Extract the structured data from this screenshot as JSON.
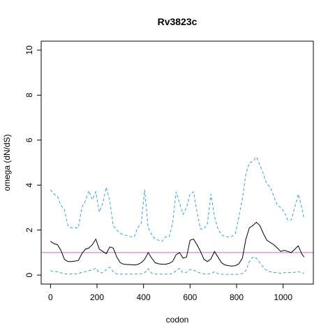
{
  "chart_data": {
    "type": "line",
    "title": "Rv3823c",
    "xlabel": "codon",
    "ylabel": "omega (dN/dS)",
    "xlim": [
      -40,
      1130
    ],
    "ylim": [
      -0.4,
      10.4
    ],
    "xticks": [
      0,
      200,
      400,
      600,
      800,
      1000
    ],
    "yticks": [
      0,
      2,
      4,
      6,
      8,
      10
    ],
    "grid": false,
    "reference_line": {
      "y": 1,
      "color": "#cc66cc"
    },
    "colors": {
      "mean": "#000000",
      "ci": "#29a3e0"
    },
    "series": [
      {
        "style": "solid",
        "x": [
          0,
          15,
          30,
          45,
          60,
          75,
          90,
          105,
          120,
          135,
          150,
          165,
          180,
          195,
          210,
          225,
          240,
          255,
          270,
          285,
          300,
          315,
          330,
          345,
          360,
          375,
          390,
          405,
          420,
          435,
          450,
          465,
          480,
          495,
          510,
          525,
          540,
          555,
          570,
          585,
          600,
          615,
          630,
          645,
          660,
          675,
          690,
          705,
          720,
          735,
          750,
          765,
          780,
          795,
          810,
          825,
          840,
          855,
          870,
          885,
          900,
          915,
          930,
          945,
          960,
          975,
          990,
          1005,
          1020,
          1035,
          1050,
          1065,
          1080,
          1090
        ],
        "y": [
          1.5,
          1.4,
          1.35,
          1.1,
          0.7,
          0.6,
          0.6,
          0.62,
          0.65,
          0.95,
          1.15,
          1.2,
          1.35,
          1.6,
          1.15,
          1.05,
          0.95,
          1.25,
          1.2,
          0.8,
          0.55,
          0.48,
          0.47,
          0.46,
          0.45,
          0.47,
          0.55,
          0.7,
          1.0,
          0.75,
          0.55,
          0.5,
          0.48,
          0.48,
          0.52,
          0.6,
          0.9,
          1.0,
          0.75,
          0.8,
          1.55,
          1.6,
          1.35,
          1.05,
          0.7,
          0.6,
          0.72,
          1.05,
          0.8,
          0.55,
          0.45,
          0.42,
          0.4,
          0.42,
          0.5,
          0.75,
          1.6,
          2.1,
          2.2,
          2.35,
          2.2,
          1.85,
          1.55,
          1.45,
          1.35,
          1.2,
          1.05,
          1.1,
          1.05,
          1.0,
          1.15,
          1.3,
          0.95,
          0.8
        ]
      },
      {
        "style": "dashed",
        "x": [
          0,
          15,
          30,
          45,
          60,
          75,
          90,
          105,
          120,
          135,
          150,
          165,
          180,
          195,
          210,
          225,
          240,
          255,
          270,
          285,
          300,
          315,
          330,
          345,
          360,
          375,
          390,
          405,
          420,
          435,
          450,
          465,
          480,
          495,
          510,
          525,
          540,
          555,
          570,
          585,
          600,
          615,
          630,
          645,
          660,
          675,
          690,
          705,
          720,
          735,
          750,
          765,
          780,
          795,
          810,
          825,
          840,
          855,
          870,
          885,
          900,
          915,
          930,
          945,
          960,
          975,
          990,
          1005,
          1020,
          1035,
          1050,
          1065,
          1080,
          1090
        ],
        "y": [
          3.8,
          3.6,
          3.5,
          3.1,
          2.9,
          2.2,
          2.1,
          2.1,
          2.1,
          3.0,
          3.3,
          3.75,
          3.35,
          3.7,
          2.8,
          3.2,
          3.9,
          3.3,
          2.2,
          2.0,
          1.85,
          1.8,
          1.75,
          1.7,
          1.7,
          2.1,
          2.3,
          3.8,
          2.1,
          1.8,
          1.6,
          1.55,
          1.5,
          1.7,
          1.7,
          2.3,
          3.7,
          3.2,
          2.7,
          3.0,
          3.6,
          3.7,
          2.8,
          2.05,
          2.05,
          2.3,
          3.6,
          2.6,
          2.05,
          1.8,
          1.7,
          1.7,
          1.72,
          1.85,
          2.6,
          3.4,
          4.5,
          5.0,
          5.05,
          5.25,
          4.9,
          4.5,
          4.05,
          3.9,
          3.5,
          3.1,
          3.0,
          2.8,
          2.45,
          2.45,
          3.0,
          3.6,
          3.0,
          2.5
        ]
      },
      {
        "style": "dashed",
        "x": [
          0,
          15,
          30,
          45,
          60,
          75,
          90,
          105,
          120,
          135,
          150,
          165,
          180,
          195,
          210,
          225,
          240,
          255,
          270,
          285,
          300,
          315,
          330,
          345,
          360,
          375,
          390,
          405,
          420,
          435,
          450,
          465,
          480,
          495,
          510,
          525,
          540,
          555,
          570,
          585,
          600,
          615,
          630,
          645,
          660,
          675,
          690,
          705,
          720,
          735,
          750,
          765,
          780,
          795,
          810,
          825,
          840,
          855,
          870,
          885,
          900,
          915,
          930,
          945,
          960,
          975,
          990,
          1005,
          1020,
          1035,
          1050,
          1065,
          1080,
          1090
        ],
        "y": [
          0.2,
          0.15,
          0.15,
          0.1,
          0.05,
          0.05,
          0.05,
          0.05,
          0.06,
          0.12,
          0.15,
          0.2,
          0.22,
          0.3,
          0.1,
          0.1,
          0.25,
          0.35,
          0.15,
          0.05,
          0.04,
          0.04,
          0.04,
          0.04,
          0.04,
          0.05,
          0.06,
          0.1,
          0.28,
          0.08,
          0.05,
          0.04,
          0.04,
          0.04,
          0.04,
          0.06,
          0.2,
          0.3,
          0.1,
          0.12,
          0.25,
          0.22,
          0.15,
          0.08,
          0.05,
          0.05,
          0.06,
          0.15,
          0.06,
          0.04,
          0.03,
          0.03,
          0.03,
          0.03,
          0.04,
          0.07,
          0.2,
          0.6,
          0.8,
          0.75,
          0.55,
          0.35,
          0.2,
          0.15,
          0.12,
          0.1,
          0.08,
          0.1,
          0.12,
          0.1,
          0.12,
          0.15,
          0.1,
          0.08
        ]
      }
    ]
  }
}
